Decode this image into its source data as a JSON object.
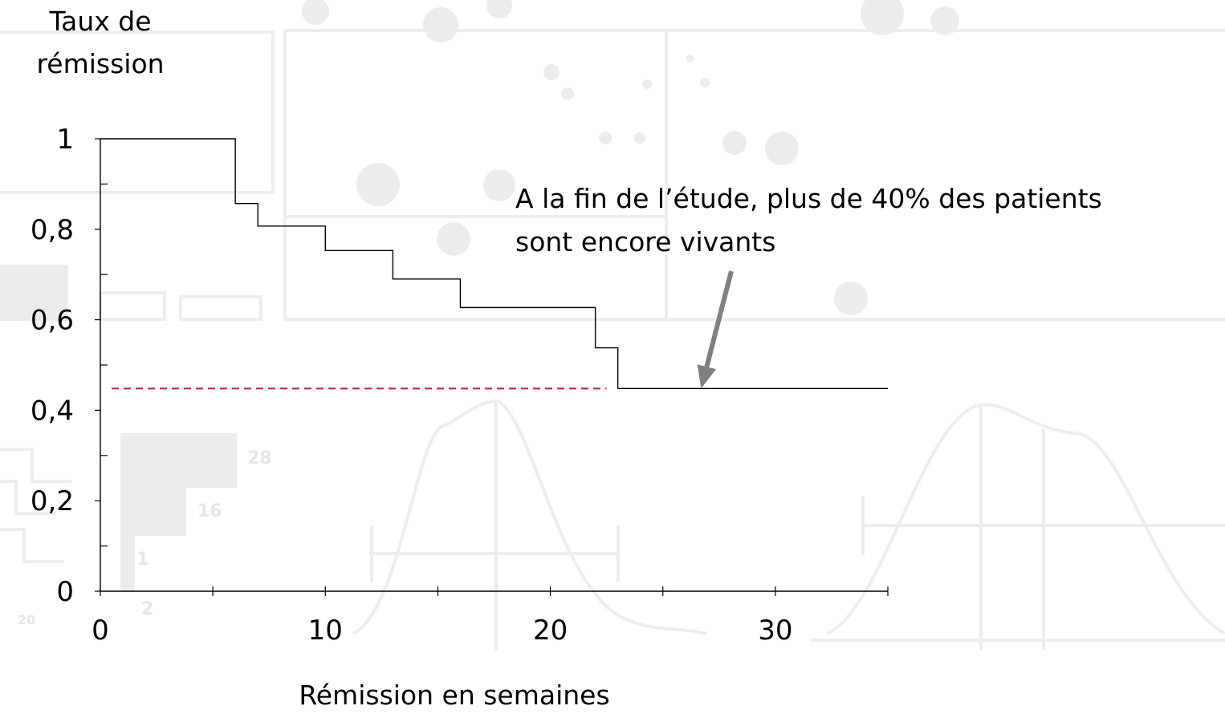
{
  "chart_data": {
    "type": "line",
    "step": true,
    "ylabel": [
      "Taux de",
      "rémission"
    ],
    "xlabel": "Rémission en semaines",
    "xlim": [
      0,
      35
    ],
    "ylim": [
      0,
      1
    ],
    "x_ticks": [
      0,
      10,
      20,
      30
    ],
    "x_minor_ticks": [
      0,
      5,
      10,
      15,
      20,
      25,
      30,
      35
    ],
    "y_ticks": [
      {
        "value": 0,
        "label": "0"
      },
      {
        "value": 0.2,
        "label": "0,2"
      },
      {
        "value": 0.4,
        "label": "0,4"
      },
      {
        "value": 0.6,
        "label": "0,6"
      },
      {
        "value": 0.8,
        "label": "0,8"
      },
      {
        "value": 1,
        "label": "1"
      }
    ],
    "y_minor_ticks": [
      0.1,
      0.3,
      0.5,
      0.7,
      0.9
    ],
    "series": [
      {
        "x": [
          0,
          6,
          7,
          10,
          13,
          16,
          22,
          23,
          35
        ],
        "y": [
          1.0,
          0.857,
          0.807,
          0.753,
          0.69,
          0.627,
          0.538,
          0.448,
          0.448
        ],
        "color": "#000000"
      }
    ],
    "reference_line": {
      "y": 0.448,
      "x_from": 0.5,
      "x_to": 22.5,
      "color": "#c0283a",
      "style": "dashed"
    },
    "annotation": {
      "lines": [
        "A la fin de l’étude, plus de 40% des patients",
        "sont encore vivants"
      ],
      "arrow_to": {
        "x": 26.7,
        "y": 0.448
      },
      "arrow_color": "#7f7f7f"
    },
    "grid": false,
    "legend": "none"
  }
}
